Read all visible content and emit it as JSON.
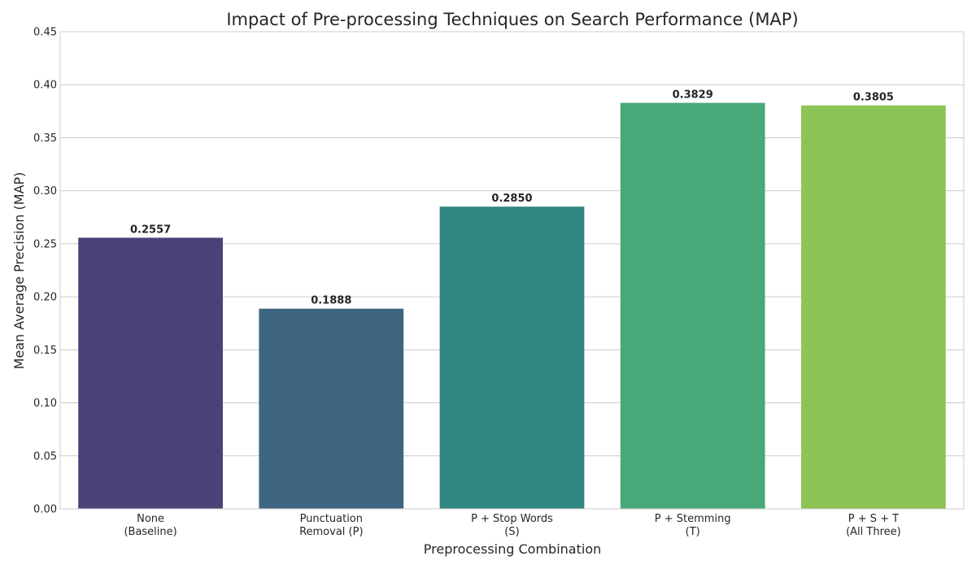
{
  "chart_data": {
    "type": "bar",
    "title": "Impact of Pre-processing Techniques on Search Performance (MAP)",
    "xlabel": "Preprocessing Combination",
    "ylabel": "Mean Average Precision (MAP)",
    "categories": [
      [
        "None",
        "(Baseline)"
      ],
      [
        "Punctuation",
        "Removal (P)"
      ],
      [
        "P + Stop Words",
        "(S)"
      ],
      [
        "P + Stemming",
        "(T)"
      ],
      [
        "P + S + T",
        "(All Three)"
      ]
    ],
    "values": [
      0.2557,
      0.1888,
      0.285,
      0.3829,
      0.3805
    ],
    "value_labels": [
      "0.2557",
      "0.1888",
      "0.2850",
      "0.3829",
      "0.3805"
    ],
    "bar_colors": [
      "#4b4278",
      "#3e6681",
      "#2f8580",
      "#47a878",
      "#8dc456"
    ],
    "ylim": [
      0,
      0.45
    ],
    "yticks": [
      "0.00",
      "0.05",
      "0.10",
      "0.15",
      "0.20",
      "0.25",
      "0.30",
      "0.35",
      "0.40",
      "0.45"
    ],
    "grid": true,
    "legend": false
  }
}
